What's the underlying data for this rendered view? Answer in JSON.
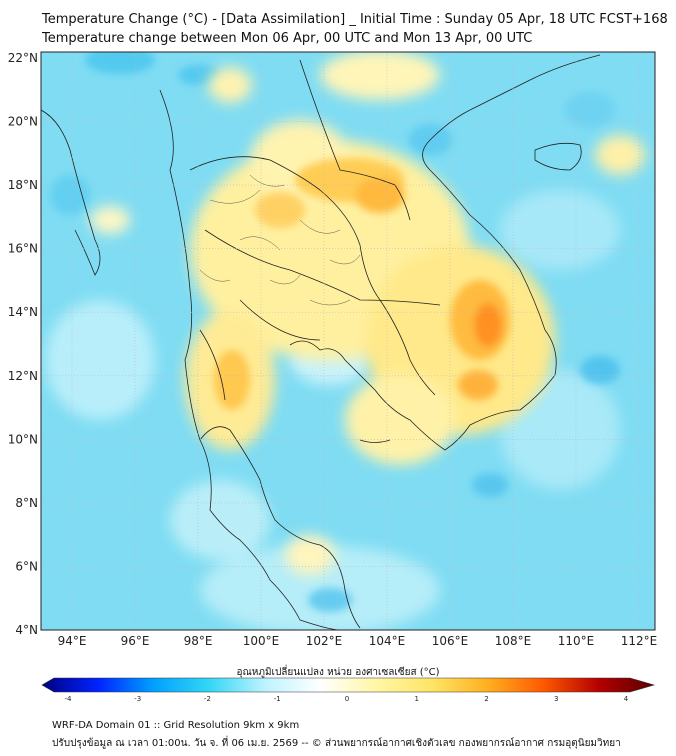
{
  "title_line1": "Temperature Change (°C) - [Data Assimilation] _ Initial Time : Sunday 05 Apr, 18 UTC FCST+168",
  "title_line2": "Temperature change between Mon 06 Apr, 00 UTC and Mon 13 Apr, 00 UTC",
  "lat_labels": [
    "22°N",
    "20°N",
    "18°N",
    "16°N",
    "14°N",
    "12°N",
    "10°N",
    "8°N",
    "6°N",
    "4°N"
  ],
  "lon_labels": [
    "94°E",
    "96°E",
    "98°E",
    "100°E",
    "102°E",
    "104°E",
    "106°E",
    "108°E",
    "110°E",
    "112°E"
  ],
  "colorbar": {
    "title": "อุณหภูมิเปลี่ยนแปลง หน่วย องศาเซลเซียส (°C)",
    "tick_labels": [
      "-4",
      "-3",
      "-2",
      "-1",
      "0",
      "1",
      "2",
      "3",
      "4"
    ],
    "colors": [
      "#00007f",
      "#0022ff",
      "#00a0ff",
      "#33d6f5",
      "#bdf3ff",
      "#ffffff",
      "#fff7a6",
      "#ffe566",
      "#ffb020",
      "#ff5a00",
      "#b50000",
      "#5a0000"
    ]
  },
  "footer_line1": "WRF-DA Domain 01 :: Grid Resolution 9km x 9km",
  "footer_line2": "ปรับปรุงข้อมูล ณ เวลา 01:00น. วัน จ. ที่ 06 เม.ย. 2569 -- © ส่วนพยากรณ์อากาศเชิงตัวเลข กองพยากรณ์อากาศ กรมอุตุนิยมวิทยา"
}
